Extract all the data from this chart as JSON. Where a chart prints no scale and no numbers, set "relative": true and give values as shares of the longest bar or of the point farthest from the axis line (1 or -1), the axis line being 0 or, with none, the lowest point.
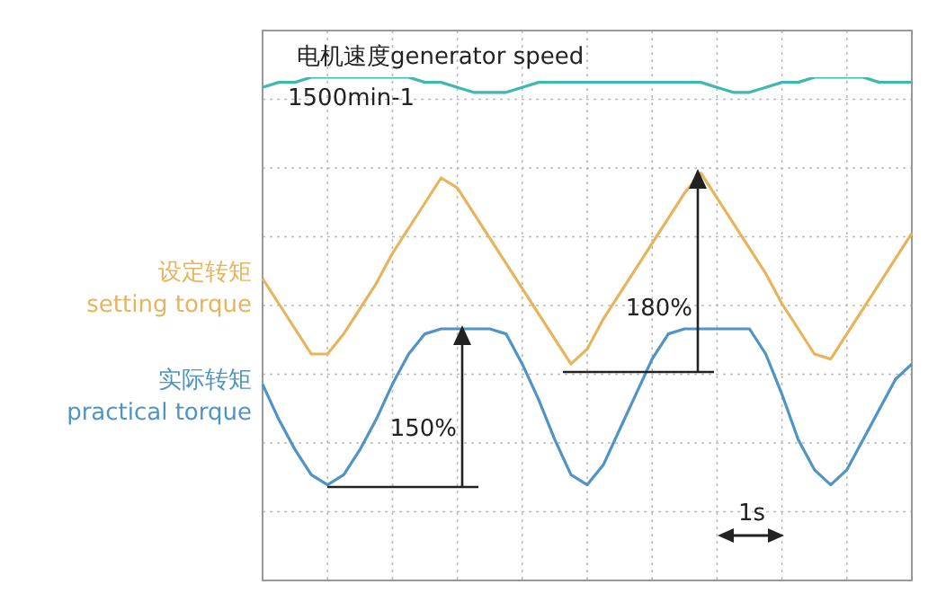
{
  "chart_data": {
    "type": "line",
    "relative": true,
    "grid": true,
    "legend": false,
    "marker": "none",
    "line_style": "solid",
    "categories": [
      null,
      null,
      null,
      null,
      null,
      null,
      null,
      null,
      null,
      null,
      null,
      null,
      null,
      null,
      null,
      null,
      null,
      null,
      null,
      null,
      null,
      null,
      null,
      null,
      null,
      null,
      null,
      null,
      null,
      null,
      null,
      null,
      null,
      null,
      null,
      null,
      null,
      null,
      null,
      null,
      null
    ],
    "series": [
      {
        "name": "电机速度generator speed",
        "color": "#3fb8b0",
        "values": [
          0.98,
          0.99,
          0.99,
          1.0,
          1.0,
          1.0,
          1.0,
          1.0,
          1.0,
          1.0,
          0.99,
          0.99,
          0.98,
          0.97,
          0.97,
          0.97,
          0.98,
          0.99,
          0.99,
          0.99,
          0.99,
          0.99,
          0.99,
          0.99,
          0.99,
          0.99,
          0.99,
          0.99,
          0.98,
          0.97,
          0.97,
          0.98,
          0.99,
          0.99,
          1.0,
          1.0,
          1.0,
          1.0,
          0.99,
          0.99,
          0.99
        ]
      },
      {
        "name": "设定转矩\nsetting torque",
        "color": "#e6b45c",
        "values": [
          0.6,
          0.55,
          0.5,
          0.45,
          0.45,
          0.49,
          0.54,
          0.59,
          0.65,
          0.7,
          0.75,
          0.8,
          0.78,
          0.73,
          0.68,
          0.63,
          0.58,
          0.53,
          0.48,
          0.43,
          0.46,
          0.52,
          0.57,
          0.62,
          0.67,
          0.72,
          0.77,
          0.81,
          0.76,
          0.71,
          0.66,
          0.61,
          0.55,
          0.5,
          0.45,
          0.44,
          0.49,
          0.54,
          0.59,
          0.64,
          0.69
        ]
      },
      {
        "name": "实际转矩\npractical torque",
        "color": "#4f94c4",
        "values": [
          0.39,
          0.32,
          0.26,
          0.21,
          0.19,
          0.21,
          0.26,
          0.32,
          0.39,
          0.45,
          0.49,
          0.5,
          0.5,
          0.5,
          0.5,
          0.49,
          0.43,
          0.36,
          0.28,
          0.21,
          0.19,
          0.23,
          0.3,
          0.37,
          0.44,
          0.49,
          0.5,
          0.5,
          0.5,
          0.5,
          0.5,
          0.45,
          0.37,
          0.28,
          0.22,
          0.19,
          0.22,
          0.28,
          0.34,
          0.4,
          0.43
        ]
      }
    ],
    "annotations": [
      "1500min-1",
      "150%",
      "180%",
      "1s"
    ]
  }
}
